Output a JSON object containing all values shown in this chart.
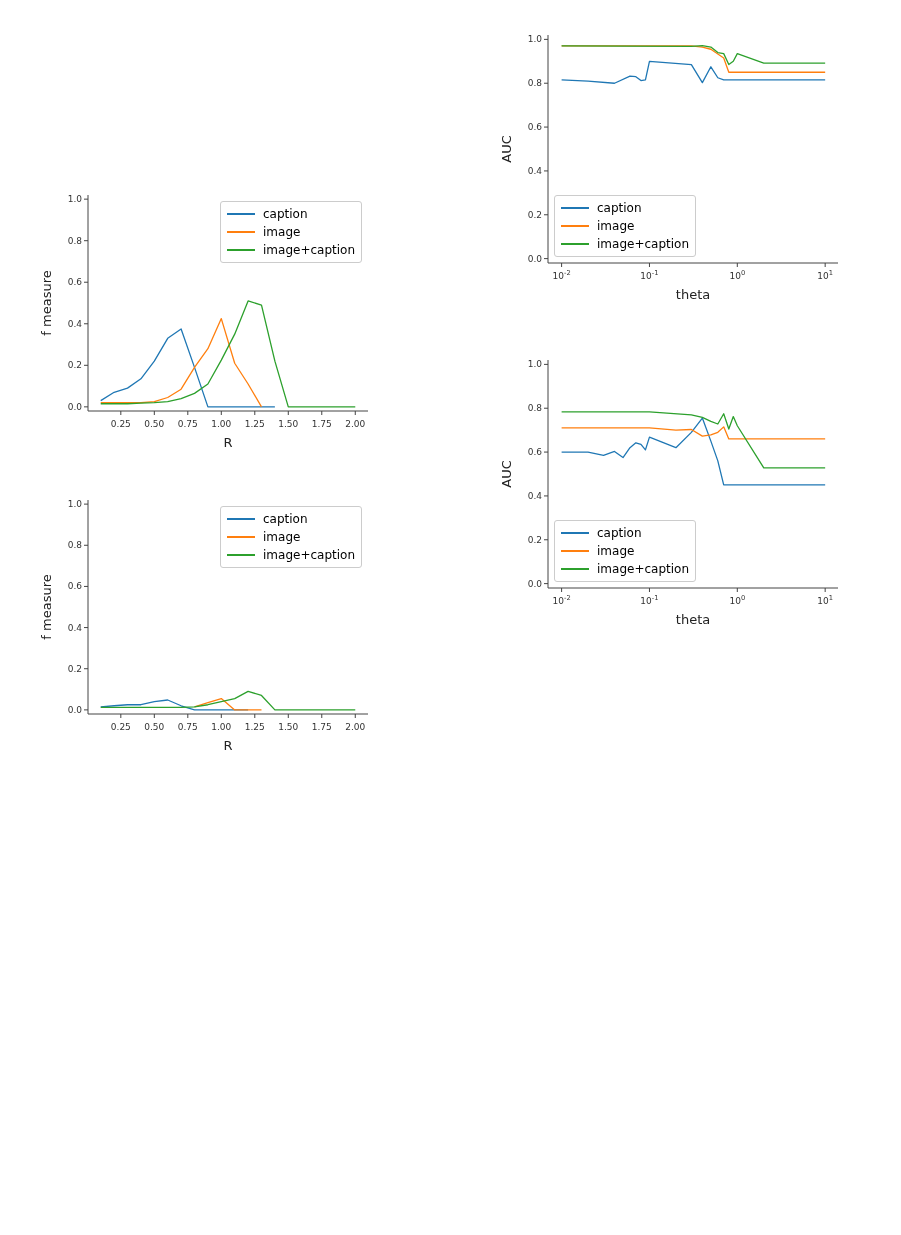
{
  "chart_data": [
    {
      "type": "line",
      "xlabel": "R",
      "ylabel": "f measure",
      "xlim": [
        0.005,
        2.095
      ],
      "ylim": [
        -0.02,
        1.02
      ],
      "xticks": [
        {
          "value": 0.25,
          "label": "0.25"
        },
        {
          "value": 0.5,
          "label": "0.50"
        },
        {
          "value": 0.75,
          "label": "0.75"
        },
        {
          "value": 1,
          "label": "1.00"
        },
        {
          "value": 1.25,
          "label": "1.25"
        },
        {
          "value": 1.5,
          "label": "1.50"
        },
        {
          "value": 1.75,
          "label": "1.75"
        },
        {
          "value": 2,
          "label": "2.00"
        }
      ],
      "yticks": [
        {
          "value": 0,
          "label": "0.0"
        },
        {
          "value": 0.2,
          "label": "0.2"
        },
        {
          "value": 0.4,
          "label": "0.4"
        },
        {
          "value": 0.6,
          "label": "0.6"
        },
        {
          "value": 0.8,
          "label": "0.8"
        },
        {
          "value": 1,
          "label": "1.0"
        }
      ],
      "legend": "top right",
      "marker": "none",
      "line_style": "solid",
      "grid": false,
      "series": [
        {
          "name": "caption",
          "color": "#1f77b4",
          "x": [
            0.1,
            0.2,
            0.3,
            0.4,
            0.5,
            0.6,
            0.7,
            0.8,
            0.9,
            1.0,
            1.1,
            1.2,
            1.3,
            1.4
          ],
          "values": [
            0.03,
            0.07,
            0.09,
            0.135,
            0.22,
            0.33,
            0.375,
            0.19,
            0,
            0,
            0,
            0,
            0,
            0
          ]
        },
        {
          "name": "image",
          "color": "#ff7f0e",
          "x": [
            0.1,
            0.2,
            0.3,
            0.4,
            0.5,
            0.6,
            0.7,
            0.8,
            0.9,
            1.0,
            1.1,
            1.2,
            1.3
          ],
          "values": [
            0.02,
            0.02,
            0.02,
            0.02,
            0.025,
            0.045,
            0.085,
            0.19,
            0.28,
            0.425,
            0.21,
            0.11,
            0
          ]
        },
        {
          "name": "image+caption",
          "color": "#2ca02c",
          "x": [
            0.1,
            0.2,
            0.3,
            0.4,
            0.5,
            0.6,
            0.7,
            0.8,
            0.9,
            1.0,
            1.1,
            1.2,
            1.3,
            1.4,
            1.5,
            1.6,
            1.7,
            1.8,
            1.9,
            2.0
          ],
          "values": [
            0.015,
            0.015,
            0.015,
            0.018,
            0.02,
            0.025,
            0.04,
            0.065,
            0.11,
            0.225,
            0.35,
            0.51,
            0.49,
            0.22,
            0,
            0,
            0,
            0,
            0,
            0
          ]
        }
      ]
    },
    {
      "type": "line",
      "xlabel": "R",
      "ylabel": "f measure",
      "xlim": [
        0.005,
        2.095
      ],
      "ylim": [
        -0.02,
        1.02
      ],
      "xticks": [
        {
          "value": 0.25,
          "label": "0.25"
        },
        {
          "value": 0.5,
          "label": "0.50"
        },
        {
          "value": 0.75,
          "label": "0.75"
        },
        {
          "value": 1,
          "label": "1.00"
        },
        {
          "value": 1.25,
          "label": "1.25"
        },
        {
          "value": 1.5,
          "label": "1.50"
        },
        {
          "value": 1.75,
          "label": "1.75"
        },
        {
          "value": 2,
          "label": "2.00"
        }
      ],
      "yticks": [
        {
          "value": 0,
          "label": "0.0"
        },
        {
          "value": 0.2,
          "label": "0.2"
        },
        {
          "value": 0.4,
          "label": "0.4"
        },
        {
          "value": 0.6,
          "label": "0.6"
        },
        {
          "value": 0.8,
          "label": "0.8"
        },
        {
          "value": 1,
          "label": "1.0"
        }
      ],
      "legend": "top right",
      "marker": "none",
      "line_style": "solid",
      "grid": false,
      "series": [
        {
          "name": "caption",
          "color": "#1f77b4",
          "x": [
            0.1,
            0.2,
            0.3,
            0.4,
            0.5,
            0.6,
            0.7,
            0.8,
            0.9,
            1.0,
            1.1,
            1.2
          ],
          "values": [
            0.015,
            0.02,
            0.025,
            0.025,
            0.04,
            0.048,
            0.02,
            0,
            0,
            0,
            0,
            0
          ]
        },
        {
          "name": "image",
          "color": "#ff7f0e",
          "x": [
            0.8,
            0.9,
            1.0,
            1.1,
            1.2,
            1.3
          ],
          "values": [
            0.015,
            0.035,
            0.055,
            0,
            0,
            0
          ]
        },
        {
          "name": "image+caption",
          "color": "#2ca02c",
          "x": [
            0.1,
            0.2,
            0.3,
            0.4,
            0.5,
            0.6,
            0.7,
            0.8,
            0.9,
            1.0,
            1.1,
            1.2,
            1.3,
            1.4,
            1.5,
            1.6,
            1.7,
            1.8,
            1.9,
            2.0
          ],
          "values": [
            0.012,
            0.012,
            0.012,
            0.012,
            0.012,
            0.012,
            0.012,
            0.015,
            0.025,
            0.04,
            0.055,
            0.09,
            0.07,
            0,
            0,
            0,
            0,
            0,
            0,
            0
          ]
        }
      ]
    },
    {
      "type": "line",
      "xlabel": "theta",
      "ylabel": "AUC",
      "log": "x",
      "xlim": [
        0.007,
        14
      ],
      "ylim": [
        -0.02,
        1.02
      ],
      "xticks": [
        {
          "value": 0.01,
          "label": "10$^{-2}$"
        },
        {
          "value": 0.1,
          "label": "10$^{-1}$"
        },
        {
          "value": 1,
          "label": "10$^{0}$"
        },
        {
          "value": 10,
          "label": "10$^{1}$"
        }
      ],
      "yticks": [
        {
          "value": 0,
          "label": "0.0"
        },
        {
          "value": 0.2,
          "label": "0.2"
        },
        {
          "value": 0.4,
          "label": "0.4"
        },
        {
          "value": 0.6,
          "label": "0.6"
        },
        {
          "value": 0.8,
          "label": "0.8"
        },
        {
          "value": 1,
          "label": "1.0"
        }
      ],
      "legend": "bottom left",
      "marker": "none",
      "line_style": "solid",
      "grid": false,
      "series": [
        {
          "name": "caption",
          "color": "#1f77b4",
          "x": [
            0.01,
            0.02,
            0.04,
            0.06,
            0.07,
            0.08,
            0.09,
            0.1,
            0.3,
            0.4,
            0.5,
            0.6,
            0.7,
            10
          ],
          "values": [
            0.815,
            0.81,
            0.8,
            0.832,
            0.83,
            0.812,
            0.815,
            0.9,
            0.885,
            0.803,
            0.875,
            0.825,
            0.815,
            0.815
          ]
        },
        {
          "name": "image",
          "color": "#ff7f0e",
          "x": [
            0.01,
            0.3,
            0.4,
            0.5,
            0.7,
            0.8,
            10
          ],
          "values": [
            0.97,
            0.97,
            0.965,
            0.955,
            0.915,
            0.85,
            0.85
          ]
        },
        {
          "name": "image+caption",
          "color": "#2ca02c",
          "x": [
            0.01,
            0.3,
            0.4,
            0.5,
            0.6,
            0.7,
            0.8,
            0.9,
            1.0,
            2,
            10
          ],
          "values": [
            0.97,
            0.968,
            0.972,
            0.965,
            0.94,
            0.935,
            0.885,
            0.9,
            0.935,
            0.892,
            0.892
          ]
        }
      ]
    },
    {
      "type": "line",
      "xlabel": "theta",
      "ylabel": "AUC",
      "log": "x",
      "xlim": [
        0.007,
        14
      ],
      "ylim": [
        -0.02,
        1.02
      ],
      "xticks": [
        {
          "value": 0.01,
          "label": "10$^{-2}$"
        },
        {
          "value": 0.1,
          "label": "10$^{-1}$"
        },
        {
          "value": 1,
          "label": "10$^{0}$"
        },
        {
          "value": 10,
          "label": "10$^{1}$"
        }
      ],
      "yticks": [
        {
          "value": 0,
          "label": "0.0"
        },
        {
          "value": 0.2,
          "label": "0.2"
        },
        {
          "value": 0.4,
          "label": "0.4"
        },
        {
          "value": 0.6,
          "label": "0.6"
        },
        {
          "value": 0.8,
          "label": "0.8"
        },
        {
          "value": 1,
          "label": "1.0"
        }
      ],
      "legend": "bottom left",
      "marker": "none",
      "line_style": "solid",
      "grid": false,
      "series": [
        {
          "name": "caption",
          "color": "#1f77b4",
          "x": [
            0.01,
            0.02,
            0.03,
            0.04,
            0.05,
            0.06,
            0.07,
            0.08,
            0.09,
            0.1,
            0.2,
            0.3,
            0.4,
            0.5,
            0.6,
            0.7,
            10
          ],
          "values": [
            0.6,
            0.6,
            0.585,
            0.603,
            0.575,
            0.62,
            0.642,
            0.635,
            0.61,
            0.668,
            0.62,
            0.69,
            0.755,
            0.65,
            0.56,
            0.45,
            0.45
          ]
        },
        {
          "name": "image",
          "color": "#ff7f0e",
          "x": [
            0.01,
            0.1,
            0.2,
            0.3,
            0.4,
            0.5,
            0.6,
            0.7,
            0.8,
            10
          ],
          "values": [
            0.71,
            0.71,
            0.7,
            0.703,
            0.673,
            0.678,
            0.69,
            0.715,
            0.66,
            0.66
          ]
        },
        {
          "name": "image+caption",
          "color": "#2ca02c",
          "x": [
            0.01,
            0.1,
            0.3,
            0.4,
            0.5,
            0.6,
            0.7,
            0.8,
            0.9,
            1.0,
            2,
            10
          ],
          "values": [
            0.783,
            0.783,
            0.77,
            0.758,
            0.74,
            0.728,
            0.775,
            0.705,
            0.762,
            0.72,
            0.528,
            0.528
          ]
        }
      ]
    }
  ]
}
